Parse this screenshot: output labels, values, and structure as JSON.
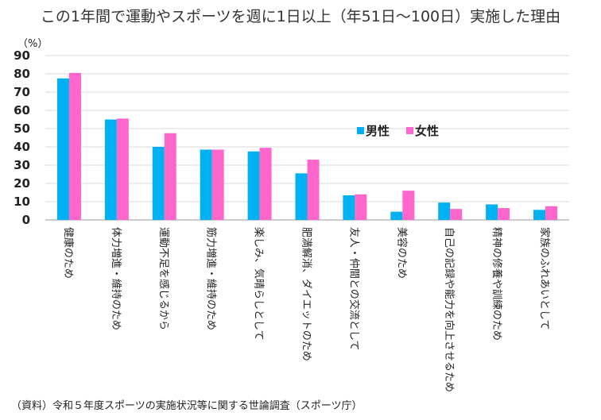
{
  "title": "この1年間で運動やスポーツを週に1日以上（年51日〜100日）実施した理由",
  "unit_label": "（%）",
  "source": "（資料）令和５年度スポーツの実施状況等に関する世論調査（スポーツ庁）",
  "chart_data": {
    "type": "bar",
    "title": "この1年間で運動やスポーツを週に1日以上（年51日〜100日）実施した理由",
    "ylabel": "（%）",
    "ylim": [
      0,
      90
    ],
    "yticks": [
      0,
      10,
      20,
      30,
      40,
      50,
      60,
      70,
      80,
      90
    ],
    "grid": true,
    "legend_position": "center-right",
    "categories": [
      "健康のため",
      "体力増進・維持のため",
      "運動不足を感じるから",
      "筋力増進・維持のため",
      "楽しみ、気晴らしとして",
      "肥満解消、ダイエットのため",
      "友人・仲間との交流として",
      "美容のため",
      "自己の記録や能力を向上させるため",
      "精神の修養や訓練のため",
      "家族のふれあいとして"
    ],
    "series": [
      {
        "name": "男性",
        "color": "#00b0f0",
        "values": [
          77.5,
          55,
          40,
          38.5,
          37.5,
          25.5,
          13.5,
          4.5,
          9.5,
          8.5,
          5.5
        ]
      },
      {
        "name": "女性",
        "color": "#ff66cc",
        "values": [
          80.5,
          55.5,
          47.5,
          38.5,
          39.5,
          33,
          14,
          16,
          6,
          6.5,
          7.5
        ]
      }
    ]
  }
}
